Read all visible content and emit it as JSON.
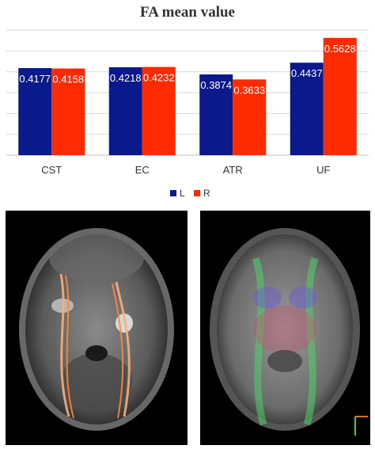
{
  "chart_data": {
    "type": "bar",
    "title": "FA mean value",
    "categories": [
      "CST",
      "EC",
      "ATR",
      "UF"
    ],
    "series": [
      {
        "name": "L",
        "color": "#0a1a8c",
        "values": [
          0.4177,
          0.4218,
          0.3874,
          0.4437
        ]
      },
      {
        "name": "R",
        "color": "#ff2a00",
        "values": [
          0.4158,
          0.4232,
          0.3633,
          0.5628
        ]
      }
    ],
    "value_labels": {
      "L": [
        "0.4177",
        "0.4218",
        "0.3874",
        "0.4437"
      ],
      "R": [
        "0.4158",
        "0.4232",
        "0.3633",
        "0.5628"
      ]
    },
    "ylim": [
      0,
      0.6
    ],
    "grid": true,
    "legend": "bottom-center"
  },
  "images": {
    "left": {
      "description_icon": "axial-t2-mri-with-tractography"
    },
    "right": {
      "description_icon": "axial-dti-color-fa-map"
    }
  }
}
